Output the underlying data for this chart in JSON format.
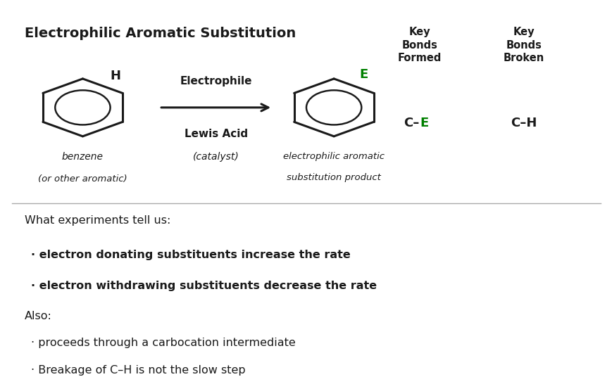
{
  "title": "Electrophilic Aromatic Substitution",
  "title_fontsize": 14,
  "background_color": "#ffffff",
  "border_color": "#333333",
  "text_color": "#1a1a1a",
  "green_color": "#008000",
  "electrophile_label": "Electrophile",
  "lewis_acid_label": "Lewis Acid",
  "catalyst_label": "(catalyst)",
  "benzene_label1": "benzene",
  "benzene_label2": "(or other aromatic)",
  "product_label1": "electrophilic aromatic",
  "product_label2": "substitution product",
  "bonds_formed_C": "C–",
  "bonds_formed_E": "E",
  "bonds_broken": "C–H",
  "what_experiments": "What experiments tell us:",
  "bullet1": "· electron donating substituents increase the rate",
  "bullet2": "· electron withdrawing substituents decrease the rate",
  "also_label": "Also:",
  "bullet3": "· proceeds through a carbocation intermediate",
  "bullet4": "· Breakage of C–H is not the slow step"
}
